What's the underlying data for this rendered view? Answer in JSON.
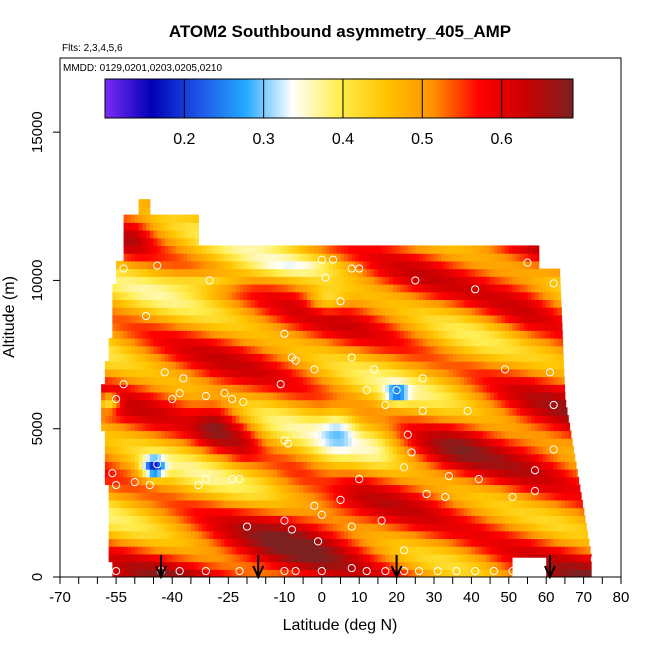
{
  "chart_data": {
    "type": "heatmap",
    "title": "ATOM2 Southbound asymmetry_405_AMP",
    "subtitle_flights": "Flts: 2,3,4,5,6",
    "subtitle_dates": "MMDD: 0129,0201,0203,0205,0210",
    "xlabel": "Latitude (deg N)",
    "ylabel": "Altitude (m)",
    "xlim": [
      -70,
      80
    ],
    "ylim": [
      0,
      17500
    ],
    "x_ticks": [
      "-70",
      "-55",
      "-40",
      "-25",
      "-10",
      "0",
      "10",
      "20",
      "30",
      "40",
      "50",
      "60",
      "70",
      "80"
    ],
    "x_tick_values": [
      -70,
      -55,
      -40,
      -25,
      -10,
      0,
      10,
      20,
      30,
      40,
      50,
      60,
      70,
      80
    ],
    "x_minor_ticks": [
      -65,
      -60,
      -50,
      -45,
      -35,
      -30,
      -20,
      -15,
      -5,
      5,
      15,
      25,
      35,
      45,
      55,
      65,
      75
    ],
    "y_ticks": [
      "0",
      "5000",
      "10000",
      "15000"
    ],
    "y_tick_values": [
      0,
      5000,
      10000,
      15000
    ],
    "colorbar": {
      "min": 0.1,
      "max": 0.69,
      "tick_labels": [
        "0.2",
        "0.3",
        "0.4",
        "0.5",
        "0.6"
      ],
      "tick_values": [
        0.2,
        0.3,
        0.4,
        0.5,
        0.6
      ],
      "stops": [
        "#7b2cf7",
        "#0000b5",
        "#1e55e8",
        "#23a8ff",
        "#ffffff",
        "#ffee50",
        "#ffc400",
        "#ff9300",
        "#ff0000",
        "#c80000",
        "#7d2020"
      ]
    },
    "sample_points": [
      {
        "lat": -58,
        "alt": 12100
      },
      {
        "lat": -55,
        "alt": 11700
      },
      {
        "lat": -53,
        "alt": 10400
      },
      {
        "lat": -44,
        "alt": 10500
      },
      {
        "lat": -30,
        "alt": 10000
      },
      {
        "lat": 0,
        "alt": 10700
      },
      {
        "lat": 1,
        "alt": 10100
      },
      {
        "lat": 3,
        "alt": 10700
      },
      {
        "lat": 8,
        "alt": 10400
      },
      {
        "lat": 10,
        "alt": 10400
      },
      {
        "lat": 25,
        "alt": 10000
      },
      {
        "lat": 41,
        "alt": 9700
      },
      {
        "lat": 55,
        "alt": 10600
      },
      {
        "lat": 62,
        "alt": 9900
      },
      {
        "lat": -47,
        "alt": 8800
      },
      {
        "lat": 5,
        "alt": 9300
      },
      {
        "lat": -10,
        "alt": 8200
      },
      {
        "lat": -8,
        "alt": 7400
      },
      {
        "lat": -7,
        "alt": 7300
      },
      {
        "lat": -2,
        "alt": 7000
      },
      {
        "lat": 8,
        "alt": 7400
      },
      {
        "lat": 14,
        "alt": 7000
      },
      {
        "lat": 27,
        "alt": 6700
      },
      {
        "lat": 49,
        "alt": 7000
      },
      {
        "lat": 61,
        "alt": 6900
      },
      {
        "lat": -53,
        "alt": 6500
      },
      {
        "lat": -42,
        "alt": 6900
      },
      {
        "lat": -37,
        "alt": 6700
      },
      {
        "lat": -38,
        "alt": 6200
      },
      {
        "lat": -40,
        "alt": 6000
      },
      {
        "lat": -31,
        "alt": 6100
      },
      {
        "lat": -26,
        "alt": 6200
      },
      {
        "lat": -24,
        "alt": 6000
      },
      {
        "lat": -21,
        "alt": 5900
      },
      {
        "lat": -55,
        "alt": 6000
      },
      {
        "lat": -11,
        "alt": 6500
      },
      {
        "lat": 12,
        "alt": 6300
      },
      {
        "lat": 20,
        "alt": 6300
      },
      {
        "lat": 17,
        "alt": 5800
      },
      {
        "lat": 27,
        "alt": 5600
      },
      {
        "lat": 39,
        "alt": 5600
      },
      {
        "lat": 62,
        "alt": 5800
      },
      {
        "lat": 23,
        "alt": 4800
      },
      {
        "lat": 62,
        "alt": 4300
      },
      {
        "lat": -10,
        "alt": 4600
      },
      {
        "lat": -9,
        "alt": 4500
      },
      {
        "lat": 24,
        "alt": 4200
      },
      {
        "lat": -44,
        "alt": 3800
      },
      {
        "lat": -50,
        "alt": 3200
      },
      {
        "lat": -55,
        "alt": 3100
      },
      {
        "lat": -56,
        "alt": 3500
      },
      {
        "lat": -46,
        "alt": 3100
      },
      {
        "lat": -33,
        "alt": 3100
      },
      {
        "lat": -31,
        "alt": 3300
      },
      {
        "lat": -24,
        "alt": 3300
      },
      {
        "lat": -22,
        "alt": 3300
      },
      {
        "lat": 10,
        "alt": 3300
      },
      {
        "lat": 22,
        "alt": 3700
      },
      {
        "lat": 34,
        "alt": 3400
      },
      {
        "lat": 42,
        "alt": 3300
      },
      {
        "lat": 57,
        "alt": 3600
      },
      {
        "lat": 57,
        "alt": 2900
      },
      {
        "lat": 28,
        "alt": 2800
      },
      {
        "lat": 33,
        "alt": 2700
      },
      {
        "lat": 51,
        "alt": 2700
      },
      {
        "lat": 5,
        "alt": 2600
      },
      {
        "lat": -2,
        "alt": 2400
      },
      {
        "lat": 0,
        "alt": 2100
      },
      {
        "lat": -10,
        "alt": 1900
      },
      {
        "lat": -8,
        "alt": 1600
      },
      {
        "lat": -20,
        "alt": 1700
      },
      {
        "lat": 16,
        "alt": 1900
      },
      {
        "lat": 8,
        "alt": 1700
      },
      {
        "lat": -1,
        "alt": 1200
      },
      {
        "lat": 22,
        "alt": 900
      },
      {
        "lat": -55,
        "alt": 200
      },
      {
        "lat": -43,
        "alt": 200
      },
      {
        "lat": -38,
        "alt": 200
      },
      {
        "lat": -31,
        "alt": 200
      },
      {
        "lat": -22,
        "alt": 200
      },
      {
        "lat": -10,
        "alt": 200
      },
      {
        "lat": -7,
        "alt": 200
      },
      {
        "lat": 0,
        "alt": 200
      },
      {
        "lat": 8,
        "alt": 300
      },
      {
        "lat": 12,
        "alt": 200
      },
      {
        "lat": 17,
        "alt": 200
      },
      {
        "lat": 22,
        "alt": 200
      },
      {
        "lat": 26,
        "alt": 200
      },
      {
        "lat": 31,
        "alt": 200
      },
      {
        "lat": 36,
        "alt": 200
      },
      {
        "lat": 41,
        "alt": 200
      },
      {
        "lat": 46,
        "alt": 200
      },
      {
        "lat": 51,
        "alt": 200
      },
      {
        "lat": 56,
        "alt": 200
      },
      {
        "lat": 73,
        "alt": 600
      }
    ],
    "arrow_latitudes": [
      -43,
      -17,
      20,
      61
    ]
  }
}
